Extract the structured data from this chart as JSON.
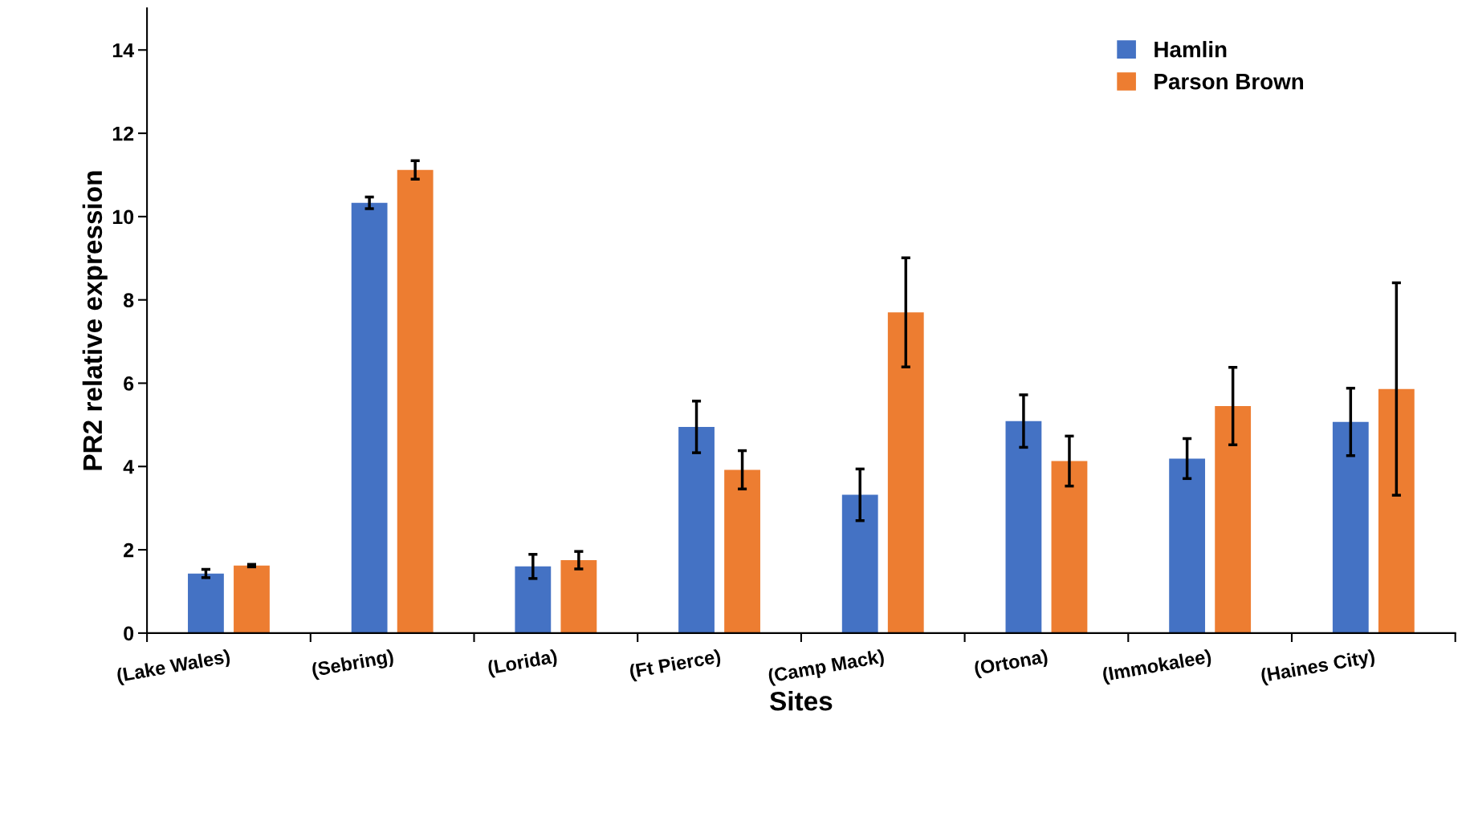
{
  "chart_data": {
    "type": "bar",
    "xlabel": "Sites",
    "ylabel": "PR2 relative expression",
    "categories": [
      "(Lake Wales)",
      "(Sebring)",
      "(Lorida)",
      "(Ft Pierce)",
      "(Camp Mack)",
      "(Ortona)",
      "(Immokalee)",
      "(Haines City)"
    ],
    "series": [
      {
        "name": "Hamlin",
        "color": "#4472c4",
        "values": [
          1.43,
          10.33,
          1.6,
          4.95,
          3.32,
          5.09,
          4.19,
          5.07
        ],
        "errors": [
          0.1,
          0.14,
          0.29,
          0.62,
          0.62,
          0.63,
          0.48,
          0.81
        ]
      },
      {
        "name": "Parson Brown",
        "color": "#ed7d31",
        "values": [
          1.62,
          11.12,
          1.75,
          3.92,
          7.7,
          4.13,
          5.45,
          5.86
        ],
        "errors": [
          0.03,
          0.22,
          0.21,
          0.46,
          1.31,
          0.6,
          0.93,
          2.55
        ]
      }
    ],
    "ylim": [
      0,
      15
    ],
    "yticks": [
      0,
      2,
      4,
      6,
      8,
      10,
      12,
      14
    ],
    "grid": false,
    "legend": "top right"
  }
}
